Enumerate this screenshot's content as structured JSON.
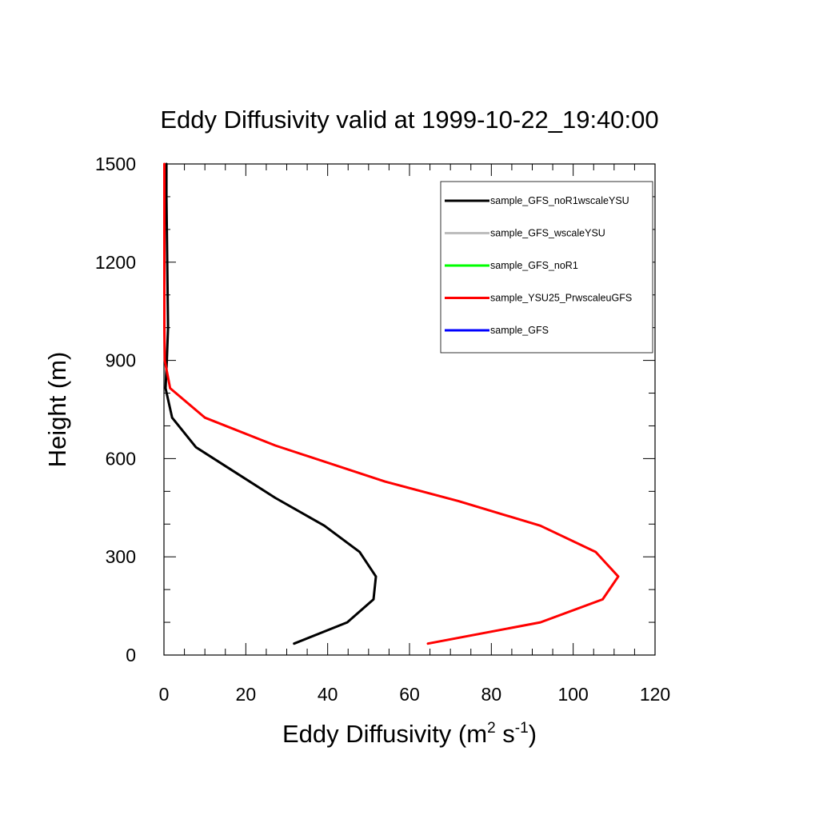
{
  "chart_data": {
    "type": "line",
    "title": "Eddy Diffusivity valid at 1999-10-22_19:40:00",
    "xlabel_main": "Eddy Diffusivity (m",
    "xlabel_sup1": "2",
    "xlabel_mid": " s",
    "xlabel_sup2": "-1",
    "xlabel_end": ")",
    "ylabel": "Height (m)",
    "xlim": [
      0,
      120
    ],
    "ylim": [
      0,
      1500
    ],
    "x_ticks": [
      "0",
      "20",
      "40",
      "60",
      "80",
      "100",
      "120"
    ],
    "y_ticks": [
      "0",
      "300",
      "600",
      "900",
      "1200",
      "1500"
    ],
    "grid": false,
    "legend_position": "top-right",
    "series": [
      {
        "name": "sample_GFS_noR1wscaleYSU",
        "color": "#000000",
        "points": [
          [
            31.8,
            35
          ],
          [
            44.8,
            100
          ],
          [
            51.2,
            170
          ],
          [
            51.8,
            240
          ],
          [
            47.8,
            315
          ],
          [
            39.2,
            395
          ],
          [
            27.2,
            480
          ],
          [
            17.8,
            555
          ],
          [
            7.8,
            635
          ],
          [
            2.0,
            725
          ],
          [
            0.4,
            815
          ],
          [
            0.7,
            900
          ],
          [
            1.0,
            1000
          ],
          [
            0.9,
            1100
          ],
          [
            0.8,
            1200
          ],
          [
            0.7,
            1300
          ],
          [
            0.6,
            1400
          ],
          [
            0.6,
            1500
          ]
        ]
      },
      {
        "name": "sample_GFS_wscaleYSU",
        "color": "#bdbdbd",
        "points": []
      },
      {
        "name": "sample_GFS_noR1",
        "color": "#00ff00",
        "points": []
      },
      {
        "name": "sample_YSU25_PrwscaleuGFS",
        "color": "#ff0000",
        "points": [
          [
            64.5,
            35
          ],
          [
            92.0,
            100
          ],
          [
            107.2,
            170
          ],
          [
            111.0,
            240
          ],
          [
            105.5,
            315
          ],
          [
            92.0,
            395
          ],
          [
            72.0,
            470
          ],
          [
            54.0,
            530
          ],
          [
            27.2,
            640
          ],
          [
            10.0,
            725
          ],
          [
            1.5,
            815
          ],
          [
            0.2,
            900
          ],
          [
            0.1,
            1000
          ],
          [
            0.1,
            1200
          ],
          [
            0.1,
            1400
          ],
          [
            0.1,
            1500
          ]
        ]
      },
      {
        "name": "sample_GFS",
        "color": "#0000ff",
        "points": []
      }
    ]
  }
}
